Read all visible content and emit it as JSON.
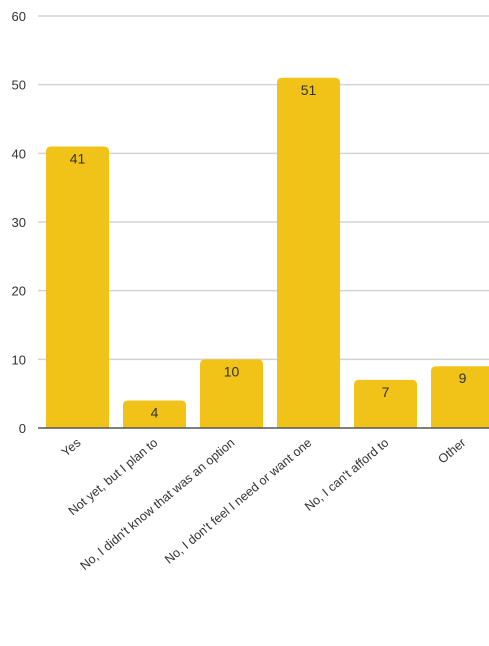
{
  "chart_data": {
    "type": "bar",
    "categories": [
      "Yes",
      "Not yet, but I plan to",
      "No, I didn't know that was an option",
      "No, I don't feel I need or want one",
      "No, I can't afford to",
      "Other"
    ],
    "values": [
      41,
      4,
      10,
      51,
      7,
      9
    ],
    "data_labels": [
      "41",
      "4",
      "10",
      "51",
      "7",
      "9"
    ],
    "yticks": [
      "0",
      "10",
      "20",
      "30",
      "40",
      "50",
      "60"
    ],
    "ylim": [
      0,
      60
    ],
    "grid": true,
    "legend": "none",
    "bar_color": "#F1C319",
    "grid_color": "#D3D3D3",
    "axis_color": "#555555",
    "text_color": "#333333"
  }
}
